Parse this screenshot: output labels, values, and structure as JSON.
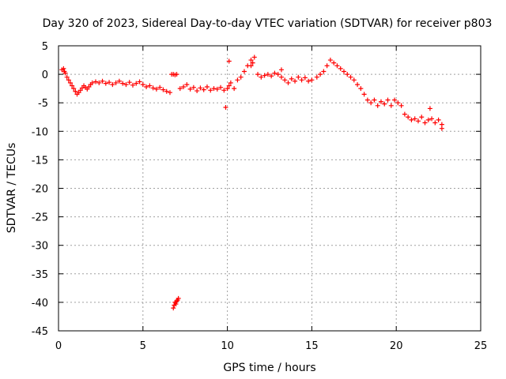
{
  "chart_data": {
    "type": "scatter",
    "title": "Day 320 of 2023, Sidereal Day-to-day VTEC variation (SDTVAR) for receiver p803",
    "xlabel": "GPS time / hours",
    "ylabel": "SDTVAR / TECUs",
    "xlim": [
      0,
      25
    ],
    "ylim": [
      -45,
      5
    ],
    "xticks": [
      0,
      5,
      10,
      15,
      20,
      25
    ],
    "yticks": [
      5,
      0,
      -5,
      -10,
      -15,
      -20,
      -25,
      -30,
      -35,
      -40,
      -45
    ],
    "grid": true,
    "marker": "plus",
    "color": "#ff0000",
    "series": [
      {
        "name": "SDTVAR",
        "x": [
          0.2,
          0.3,
          0.35,
          0.4,
          0.5,
          0.6,
          0.7,
          0.8,
          0.9,
          1.0,
          1.1,
          1.2,
          1.3,
          1.4,
          1.5,
          1.6,
          1.7,
          1.8,
          1.9,
          2.0,
          2.2,
          2.4,
          2.6,
          2.8,
          3.0,
          3.2,
          3.4,
          3.6,
          3.8,
          4.0,
          4.2,
          4.4,
          4.6,
          4.8,
          5.0,
          5.2,
          5.4,
          5.6,
          5.8,
          6.0,
          6.2,
          6.4,
          6.6,
          6.7,
          6.8,
          6.9,
          7.0,
          7.2,
          7.4,
          7.6,
          7.8,
          8.0,
          8.2,
          8.4,
          8.6,
          8.8,
          9.0,
          9.2,
          9.4,
          9.6,
          9.8,
          9.9,
          10.0,
          10.1,
          10.2,
          10.4,
          10.6,
          10.8,
          11.0,
          11.2,
          11.4,
          11.6,
          11.8,
          12.0,
          12.2,
          12.4,
          12.6,
          12.8,
          13.0,
          13.2,
          13.4,
          13.6,
          13.8,
          14.0,
          14.2,
          14.4,
          14.6,
          14.8,
          15.0,
          15.3,
          15.5,
          15.7,
          15.9,
          16.1,
          16.3,
          16.5,
          16.7,
          16.9,
          17.1,
          17.3,
          17.5,
          17.7,
          17.9,
          18.1,
          18.3,
          18.5,
          18.7,
          18.9,
          19.1,
          19.3,
          19.5,
          19.7,
          19.9,
          20.1,
          20.3,
          20.5,
          20.7,
          20.9,
          21.1,
          21.3,
          21.5,
          21.7,
          21.9,
          22.1,
          22.3,
          22.5,
          22.7,
          6.8,
          6.85,
          6.9,
          6.95,
          7.0,
          7.05,
          7.1,
          10.1,
          11.4,
          11.5,
          13.2,
          22.0,
          22.7
        ],
        "y": [
          0.8,
          1.0,
          0.5,
          0.2,
          -0.5,
          -1.0,
          -1.5,
          -2.0,
          -2.5,
          -3.0,
          -3.5,
          -3.2,
          -2.8,
          -2.4,
          -2.0,
          -2.3,
          -2.6,
          -2.2,
          -1.8,
          -1.5,
          -1.3,
          -1.5,
          -1.2,
          -1.6,
          -1.4,
          -1.8,
          -1.5,
          -1.2,
          -1.6,
          -1.8,
          -1.4,
          -1.9,
          -1.6,
          -1.3,
          -1.8,
          -2.2,
          -2.0,
          -2.4,
          -2.6,
          -2.3,
          -2.7,
          -3.0,
          -3.2,
          0.0,
          0.0,
          -0.1,
          0.0,
          -2.5,
          -2.2,
          -1.8,
          -2.6,
          -2.3,
          -2.9,
          -2.4,
          -2.7,
          -2.2,
          -2.8,
          -2.5,
          -2.6,
          -2.3,
          -2.8,
          -5.8,
          -2.5,
          -2.0,
          -1.5,
          -2.5,
          -1.0,
          -0.5,
          0.5,
          1.5,
          2.5,
          3.0,
          0.0,
          -0.5,
          -0.2,
          0.0,
          -0.3,
          0.2,
          0.0,
          -0.5,
          -1.0,
          -1.5,
          -0.8,
          -1.2,
          -0.5,
          -1.0,
          -0.6,
          -1.2,
          -1.0,
          -0.5,
          0.0,
          0.5,
          1.5,
          2.5,
          2.0,
          1.5,
          1.0,
          0.5,
          0.0,
          -0.5,
          -1.0,
          -1.8,
          -2.5,
          -3.5,
          -4.5,
          -5.0,
          -4.5,
          -5.5,
          -4.8,
          -5.2,
          -4.5,
          -5.5,
          -4.5,
          -5.0,
          -5.5,
          -7.0,
          -7.5,
          -8.0,
          -7.8,
          -8.2,
          -7.5,
          -8.5,
          -8.0,
          -7.8,
          -8.5,
          -8.0,
          -8.8,
          -41.0,
          -40.5,
          -40.0,
          -40.3,
          -39.8,
          -39.6,
          -39.3,
          2.3,
          1.5,
          2.0,
          0.8,
          -6.0,
          -9.5
        ]
      }
    ]
  }
}
